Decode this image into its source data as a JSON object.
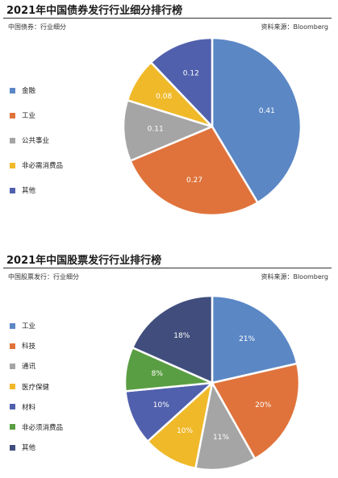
{
  "chart_data": [
    {
      "type": "pie",
      "title": "2021年中国债券发行行业细分排行榜",
      "subtitle": "中国债券：行业细分",
      "source": "资料来源：Bloomberg",
      "start_angle_deg": 0,
      "categories": [
        "金融",
        "工业",
        "公共事业",
        "非必需消费品",
        "其他"
      ],
      "values": [
        0.41,
        0.27,
        0.11,
        0.08,
        0.12
      ],
      "labels": [
        "0.41",
        "0.27",
        "0.11",
        "0.08",
        "0.12"
      ],
      "colors": [
        "#5b87c5",
        "#e0733b",
        "#a5a5a5",
        "#f0b92a",
        "#5160ad"
      ],
      "legend_position": "left"
    },
    {
      "type": "pie",
      "title": "2021年中国股票发行行业排行榜",
      "subtitle": "中国股票发行：行业细分",
      "source": "资料来源：Bloomberg",
      "start_angle_deg": 0,
      "categories": [
        "工业",
        "科技",
        "通讯",
        "医疗保健",
        "材料",
        "非必须消费品",
        "其他"
      ],
      "values": [
        21,
        20,
        11,
        10,
        10,
        8,
        18
      ],
      "labels": [
        "21%",
        "20%",
        "11%",
        "10%",
        "10%",
        "8%",
        "18%"
      ],
      "colors": [
        "#5b87c5",
        "#e0733b",
        "#a5a5a5",
        "#f0b92a",
        "#5160ad",
        "#5a9e43",
        "#414e7d"
      ],
      "legend_position": "left"
    }
  ]
}
